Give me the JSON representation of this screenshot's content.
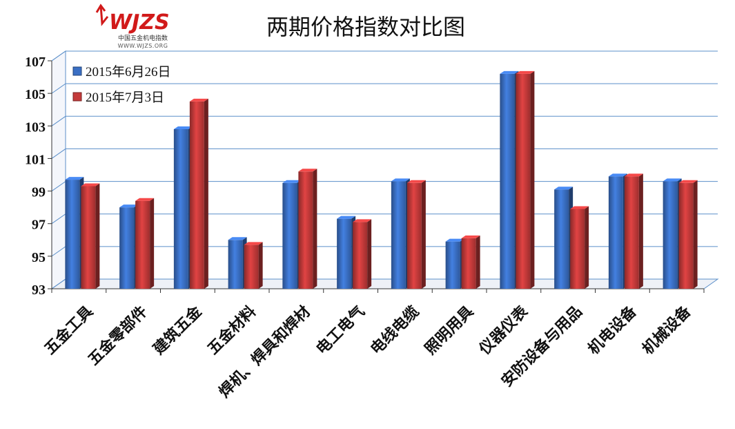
{
  "logo": {
    "mark_text": "WJZS",
    "subtitle": "中国五金机电指数",
    "url_text": "WWW.WJZS.ORG",
    "colors": {
      "mark": "#d11a1a",
      "arrow": "#d11a1a"
    }
  },
  "chart_data": {
    "type": "bar",
    "title": "两期价格指数对比图",
    "xlabel": "",
    "ylabel": "",
    "ylim": [
      93,
      107
    ],
    "yticks": [
      93,
      95,
      97,
      99,
      101,
      103,
      105,
      107
    ],
    "grid": true,
    "legend_position": "top-left",
    "categories": [
      "五金工具",
      "五金零部件",
      "建筑五金",
      "五金材料",
      "焊机、焊具和焊材",
      "电工电气",
      "电线电缆",
      "照明用具",
      "仪器仪表",
      "安防设备与用品",
      "机电设备",
      "机械设备"
    ],
    "series": [
      {
        "name": "2015年6月26日",
        "color": "#3a6fc4",
        "values": [
          99.7,
          98.0,
          102.8,
          96.0,
          99.5,
          97.3,
          99.6,
          95.9,
          106.2,
          99.1,
          99.9,
          99.6
        ]
      },
      {
        "name": "2015年7月3日",
        "color": "#c43a3a",
        "values": [
          99.3,
          98.4,
          104.5,
          95.7,
          100.2,
          97.1,
          99.5,
          96.1,
          106.2,
          97.9,
          99.9,
          99.5
        ]
      }
    ]
  }
}
